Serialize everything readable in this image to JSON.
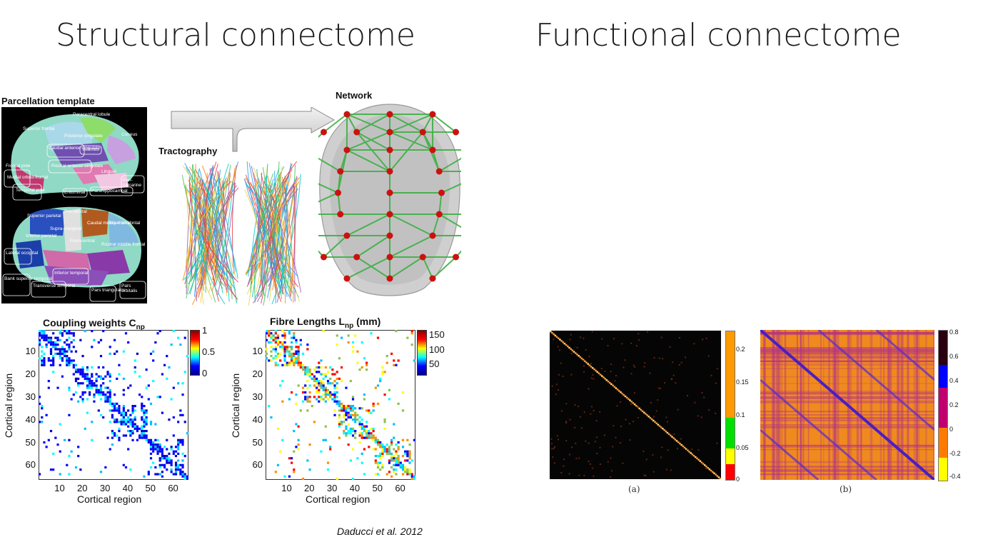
{
  "titles": {
    "structural": "Structural connectome",
    "functional": "Functional connectome"
  },
  "panels": {
    "parcellation": "Parcellation template",
    "tractography": "Tractography",
    "network": "Network",
    "coupling": "Coupling weights C",
    "coupling_sub": "np",
    "fibre": "Fibre Lengths L",
    "fibre_sub": "np",
    "fibre_unit": " (mm)"
  },
  "brain_labels_top": [
    "Paracentral lobule",
    "Superior frontal",
    "Posterior cingulate",
    "Cuneus",
    "Caudal anterior cingulate",
    "Isthmus",
    "Frontal pole",
    "Medial orbito-frontal",
    "Rostral anterior cingulate",
    "Lingual",
    "Peri-calcarine",
    "Temporal pole",
    "Entorhinal",
    "Parahippocampal"
  ],
  "brain_labels_bottom": [
    "Superior parietal",
    "Pre-central",
    "Caudal middle frontal",
    "Superior frontal",
    "Inferior parietal",
    "Supra-marginal",
    "Post-central",
    "Rostral middle frontal",
    "Lateral occipital",
    "Bank superior temporal",
    "Transverse temporal",
    "Inferior temporal",
    "Pars triangularis",
    "Pars orbitalis"
  ],
  "matrices": {
    "axis_label": "Cortical region",
    "ticks": [
      "10",
      "20",
      "30",
      "40",
      "50",
      "60"
    ],
    "coupling_colorbar": [
      "1",
      "0.5",
      "0"
    ],
    "fibre_colorbar": [
      "150",
      "100",
      "50"
    ]
  },
  "functional": {
    "a_colorbar": [
      "0.2",
      "0.15",
      "0.1",
      "0.05",
      "0"
    ],
    "a_caption": "(a)",
    "b_colorbar": [
      "0.8",
      "0.6",
      "0.4",
      "0.2",
      "0",
      "-0.2",
      "-0.4"
    ],
    "b_caption": "(b)"
  },
  "citation": "Daducci  et al. 2012",
  "colors": {
    "brain_bg": "#000000",
    "network_edges": "#3cb043",
    "network_nodes": "#cc1111"
  }
}
